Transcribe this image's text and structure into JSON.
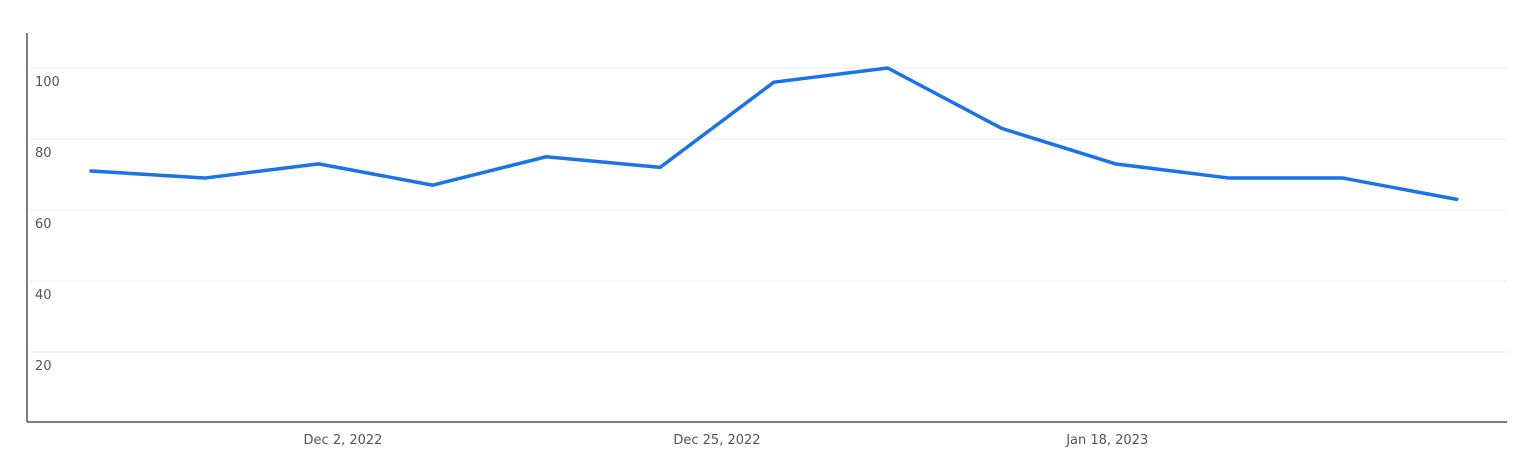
{
  "chart_data": {
    "type": "line",
    "title": "",
    "xlabel": "",
    "ylabel": "",
    "x": [
      "2022-11-13",
      "2022-11-20",
      "2022-11-27",
      "2022-12-04",
      "2022-12-11",
      "2022-12-18",
      "2022-12-25",
      "2023-01-01",
      "2023-01-08",
      "2023-01-15",
      "2023-01-22",
      "2023-01-29",
      "2023-02-05"
    ],
    "series": [
      {
        "values": [
          71,
          69,
          73,
          67,
          75,
          72,
          96,
          100,
          83,
          73,
          69,
          69,
          63
        ],
        "color": "#1a73e8"
      }
    ],
    "ylim": [
      0,
      110
    ],
    "yticks": [
      "20",
      "40",
      "60",
      "80",
      "100"
    ],
    "xtick_labels": [
      {
        "date": "2022-12-02",
        "label": "Dec 2, 2022"
      },
      {
        "date": "2022-12-25",
        "label": "Dec 25, 2022"
      },
      {
        "date": "2023-01-18",
        "label": "Jan 18, 2023"
      }
    ],
    "grid": true,
    "legend": "none"
  }
}
